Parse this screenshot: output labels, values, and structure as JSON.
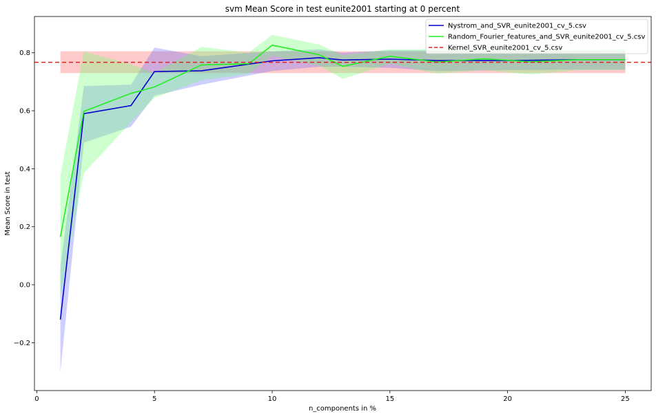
{
  "chart_data": {
    "type": "line",
    "title": "svm Mean Score in test eunite2001 starting at 0 percent",
    "xlabel": "n_components in %",
    "ylabel": "Mean Score in test",
    "xlim": [
      -0.1,
      26.1
    ],
    "ylim": [
      -0.365,
      0.925
    ],
    "xticks": [
      0,
      5,
      10,
      15,
      20,
      25
    ],
    "yticks": [
      -0.2,
      0.0,
      0.2,
      0.4,
      0.6,
      0.8
    ],
    "ytick_labels": [
      "−0.2",
      "0.0",
      "0.2",
      "0.4",
      "0.6",
      "0.8"
    ],
    "grid": false,
    "legend_position": "top-right",
    "series": [
      {
        "name": "Nystrom_and_SVR_eunite2001_cv_5.csv",
        "color": "#0000cc",
        "band_color": "#6666ff",
        "style": "solid",
        "x": [
          1,
          2,
          4,
          5,
          7,
          10,
          12,
          13,
          15,
          17,
          20,
          23,
          25
        ],
        "y": [
          -0.12,
          0.59,
          0.618,
          0.735,
          0.738,
          0.772,
          0.783,
          0.775,
          0.778,
          0.773,
          0.773,
          0.776,
          0.776
        ],
        "lower": [
          -0.3,
          0.49,
          0.545,
          0.652,
          0.69,
          0.737,
          0.752,
          0.752,
          0.748,
          0.737,
          0.74,
          0.742,
          0.742
        ],
        "upper": [
          0.06,
          0.685,
          0.69,
          0.818,
          0.788,
          0.805,
          0.812,
          0.8,
          0.808,
          0.808,
          0.806,
          0.808,
          0.81
        ]
      },
      {
        "name": "Random_Fourier_features_and_SVR_eunite2001_cv_5.csv",
        "color": "#22ee22",
        "band_color": "#66ff66",
        "style": "solid",
        "x": [
          1,
          2,
          4,
          5,
          7,
          9,
          10,
          12,
          13,
          15,
          17,
          19,
          21,
          23,
          25
        ],
        "y": [
          0.165,
          0.598,
          0.66,
          0.682,
          0.758,
          0.762,
          0.826,
          0.793,
          0.753,
          0.788,
          0.768,
          0.779,
          0.769,
          0.776,
          0.776
        ],
        "lower": [
          -0.04,
          0.385,
          0.56,
          0.645,
          0.705,
          0.727,
          0.79,
          0.755,
          0.71,
          0.762,
          0.728,
          0.74,
          0.725,
          0.74,
          0.74
        ],
        "upper": [
          0.375,
          0.805,
          0.76,
          0.73,
          0.82,
          0.8,
          0.862,
          0.828,
          0.792,
          0.812,
          0.812,
          0.815,
          0.812,
          0.812,
          0.812
        ]
      },
      {
        "name": "Kernel_SVR_eunite2001_cv_5.csv",
        "color": "#dd2222",
        "band_color": "#ff6666",
        "style": "dashed",
        "x": [
          1,
          25
        ],
        "y": [
          0.767,
          0.767
        ],
        "lower": [
          0.73,
          0.73
        ],
        "upper": [
          0.805,
          0.805
        ]
      }
    ]
  }
}
